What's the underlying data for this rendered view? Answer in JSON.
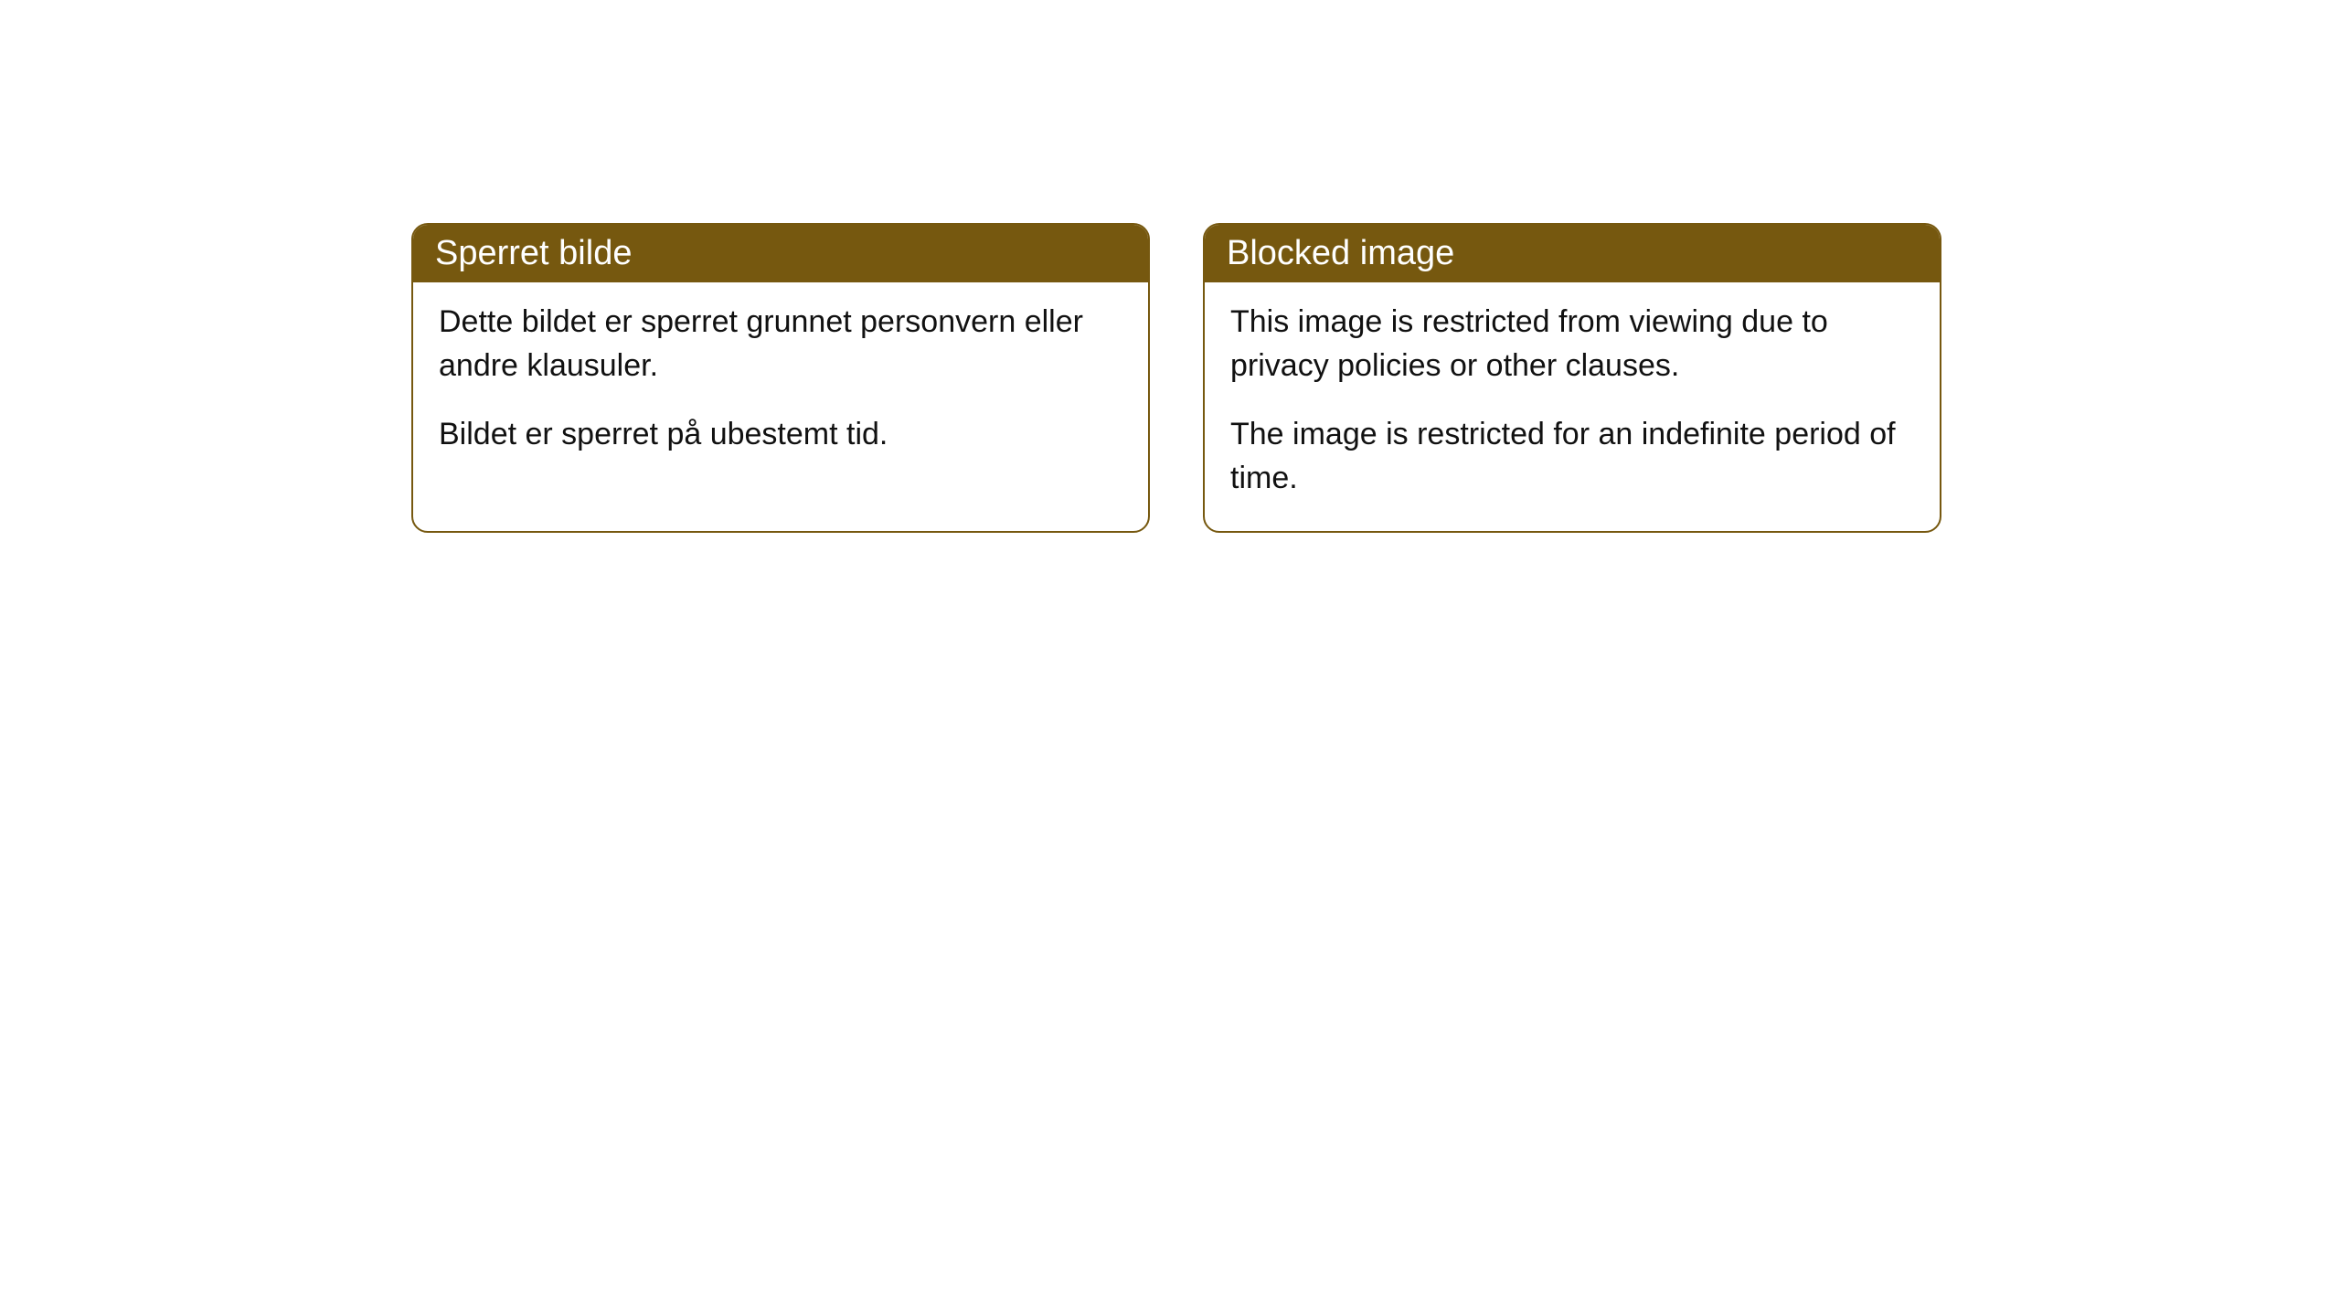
{
  "cards": [
    {
      "title": "Sperret bilde",
      "paragraph1": "Dette bildet er sperret grunnet personvern eller andre klausuler.",
      "paragraph2": "Bildet er sperret på ubestemt tid."
    },
    {
      "title": "Blocked image",
      "paragraph1": "This image is restricted from viewing due to privacy policies or other clauses.",
      "paragraph2": "The image is restricted for an indefinite period of time."
    }
  ],
  "style": {
    "header_bg_color": "#76580f",
    "header_text_color": "#ffffff",
    "border_color": "#76580f",
    "body_bg_color": "#ffffff",
    "body_text_color": "#111111",
    "border_radius": 18,
    "header_fontsize": 38,
    "body_fontsize": 34
  }
}
